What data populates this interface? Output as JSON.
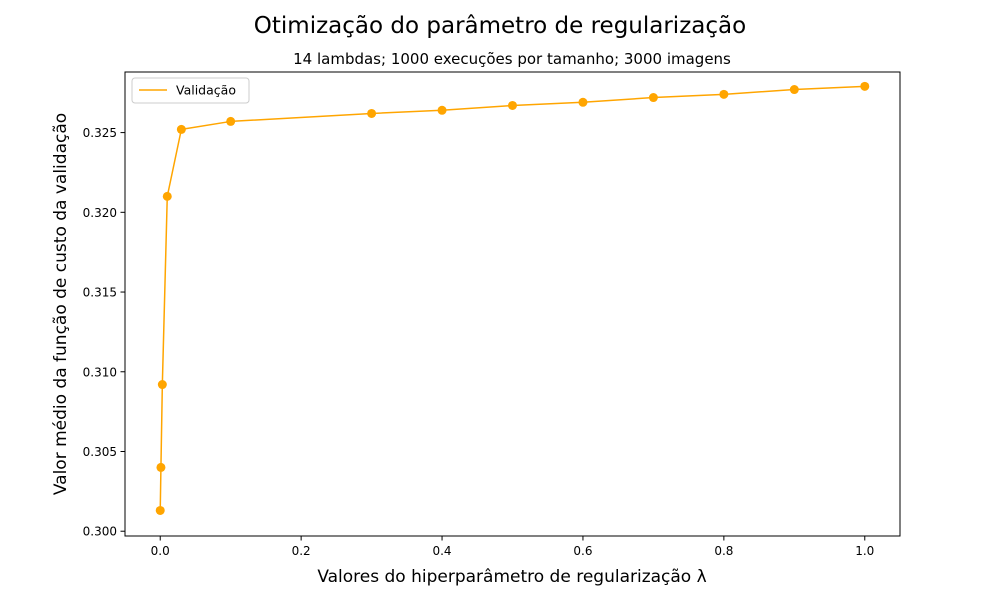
{
  "chart_data": {
    "type": "line",
    "title": "Otimização do parâmetro de regularização",
    "subtitle": "14 lambdas; 1000 execuções por tamanho; 3000 imagens",
    "xlabel": "Valores do hiperparâmetro de regularização λ",
    "ylabel": "Valor médio da função de custo da validação",
    "xlim": [
      -0.05,
      1.05
    ],
    "ylim": [
      0.2997,
      0.3288
    ],
    "xticks": [
      0.0,
      0.2,
      0.4,
      0.6,
      0.8,
      1.0
    ],
    "xtick_labels": [
      "0.0",
      "0.2",
      "0.4",
      "0.6",
      "0.8",
      "1.0"
    ],
    "yticks": [
      0.3,
      0.305,
      0.31,
      0.315,
      0.32,
      0.325
    ],
    "ytick_labels": [
      "0.300",
      "0.305",
      "0.310",
      "0.315",
      "0.320",
      "0.325"
    ],
    "grid": false,
    "legend": {
      "placement": "upper-left",
      "entries": [
        "Validação"
      ]
    },
    "series": [
      {
        "name": "Validação",
        "color": "#ffa500",
        "marker": "circle",
        "x": [
          0.0,
          0.001,
          0.003,
          0.01,
          0.03,
          0.1,
          0.3,
          0.4,
          0.5,
          0.6,
          0.7,
          0.8,
          0.9,
          1.0
        ],
        "y": [
          0.3013,
          0.304,
          0.3092,
          0.321,
          0.3252,
          0.3257,
          0.3262,
          0.3264,
          0.3267,
          0.3269,
          0.3272,
          0.3274,
          0.3277,
          0.3279
        ]
      }
    ]
  }
}
